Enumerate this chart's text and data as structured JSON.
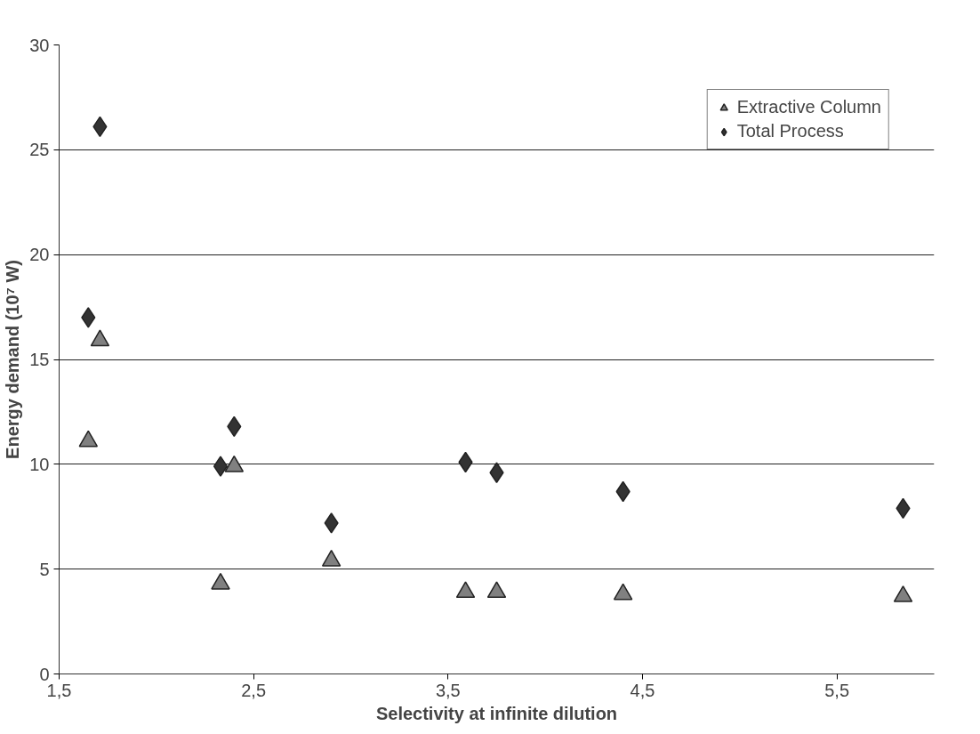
{
  "chart_data": {
    "type": "scatter",
    "xlabel": "Selectivity at infinite dilution",
    "ylabel": "Energy demand (10⁷ W)",
    "xlim": [
      1.5,
      6.0
    ],
    "ylim": [
      0,
      30
    ],
    "xticks": [
      {
        "value": 1.5,
        "label": "1,5"
      },
      {
        "value": 2.5,
        "label": "2,5"
      },
      {
        "value": 3.5,
        "label": "3,5"
      },
      {
        "value": 4.5,
        "label": "4,5"
      },
      {
        "value": 5.5,
        "label": "5,5"
      }
    ],
    "yticks": [
      0,
      5,
      10,
      15,
      20,
      25,
      30
    ],
    "grid": "y",
    "legend": "top right",
    "series": [
      {
        "name": "Extractive Column",
        "color": "#808080",
        "marker": "triangle",
        "x": [
          1.65,
          1.71,
          2.33,
          2.4,
          2.9,
          3.59,
          3.75,
          4.4,
          5.84
        ],
        "values": [
          11.1,
          15.9,
          4.3,
          9.9,
          5.4,
          3.9,
          3.9,
          3.8,
          3.7
        ]
      },
      {
        "name": "Total Process",
        "color": "#333333",
        "marker": "diamond",
        "x": [
          1.65,
          1.71,
          2.33,
          2.4,
          2.9,
          3.59,
          3.75,
          4.4,
          5.84
        ],
        "values": [
          17.0,
          26.1,
          9.9,
          11.8,
          7.2,
          10.1,
          9.6,
          8.7,
          7.9
        ]
      }
    ]
  }
}
